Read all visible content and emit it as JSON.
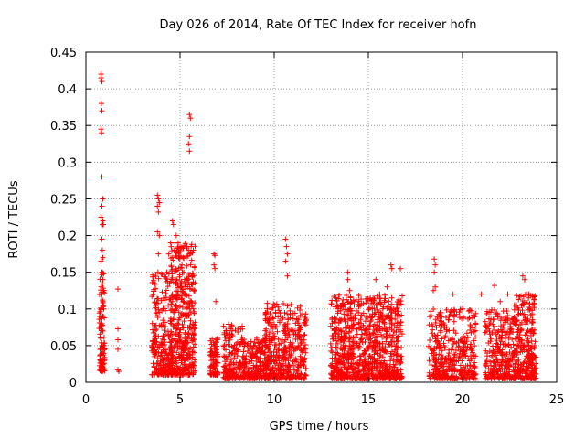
{
  "chart_data": {
    "type": "scatter",
    "title": "Day 026 of 2014, Rate Of TEC Index for receiver hofn",
    "xlabel": "GPS time / hours",
    "ylabel": "ROTI / TECUs",
    "xlim": [
      0,
      25
    ],
    "ylim": [
      0,
      0.45
    ],
    "xticks": [
      0,
      5,
      10,
      15,
      20,
      25
    ],
    "yticks": [
      0,
      0.05,
      0.1,
      0.15,
      0.2,
      0.25,
      0.3,
      0.35,
      0.4,
      0.45
    ],
    "xtick_labels": [
      "0",
      "5",
      "10",
      "15",
      "20",
      "25"
    ],
    "ytick_labels": [
      "0",
      "0.05",
      "0.1",
      "0.15",
      "0.2",
      "0.25",
      "0.3",
      "0.35",
      "0.4",
      "0.45"
    ],
    "grid": true,
    "marker": "+",
    "series_color": "#ff0000",
    "series": [
      {
        "name": "ROTI",
        "points": [
          [
            0.8,
            0.42
          ],
          [
            0.8,
            0.415
          ],
          [
            0.85,
            0.41
          ],
          [
            0.82,
            0.38
          ],
          [
            0.85,
            0.37
          ],
          [
            0.8,
            0.345
          ],
          [
            0.83,
            0.34
          ],
          [
            0.85,
            0.28
          ],
          [
            0.9,
            0.25
          ],
          [
            0.85,
            0.24
          ],
          [
            0.8,
            0.225
          ],
          [
            0.9,
            0.22
          ],
          [
            0.88,
            0.215
          ],
          [
            0.92,
            0.215
          ],
          [
            0.85,
            0.195
          ],
          [
            0.87,
            0.18
          ],
          [
            0.9,
            0.17
          ],
          [
            0.8,
            0.165
          ],
          [
            0.85,
            0.15
          ],
          [
            0.9,
            0.14
          ],
          [
            0.8,
            0.13
          ],
          [
            0.85,
            0.12
          ],
          [
            0.9,
            0.11
          ],
          [
            0.82,
            0.1
          ],
          [
            0.88,
            0.09
          ],
          [
            0.85,
            0.08
          ],
          [
            0.9,
            0.07
          ],
          [
            0.8,
            0.06
          ],
          [
            0.85,
            0.05
          ],
          [
            0.88,
            0.04
          ],
          [
            0.82,
            0.03
          ],
          [
            0.9,
            0.025
          ],
          [
            0.85,
            0.02
          ],
          [
            0.95,
            0.05
          ],
          [
            0.95,
            0.1
          ],
          [
            1.7,
            0.127
          ],
          [
            1.7,
            0.073
          ],
          [
            1.7,
            0.058
          ],
          [
            1.7,
            0.045
          ],
          [
            1.7,
            0.017
          ],
          [
            1.75,
            0.015
          ],
          [
            3.8,
            0.255
          ],
          [
            3.85,
            0.25
          ],
          [
            3.9,
            0.245
          ],
          [
            3.8,
            0.24
          ],
          [
            3.85,
            0.232
          ],
          [
            3.8,
            0.205
          ],
          [
            3.9,
            0.2
          ],
          [
            3.85,
            0.175
          ],
          [
            4.6,
            0.22
          ],
          [
            4.65,
            0.215
          ],
          [
            4.8,
            0.2
          ],
          [
            4.9,
            0.19
          ],
          [
            5.0,
            0.185
          ],
          [
            4.5,
            0.19
          ],
          [
            4.7,
            0.18
          ],
          [
            4.4,
            0.175
          ],
          [
            4.6,
            0.17
          ],
          [
            5.1,
            0.16
          ],
          [
            5.2,
            0.15
          ],
          [
            4.3,
            0.15
          ],
          [
            4.8,
            0.14
          ],
          [
            5.5,
            0.365
          ],
          [
            5.55,
            0.36
          ],
          [
            5.5,
            0.335
          ],
          [
            5.45,
            0.325
          ],
          [
            5.5,
            0.315
          ],
          [
            5.4,
            0.13
          ],
          [
            5.3,
            0.12
          ],
          [
            5.6,
            0.11
          ],
          [
            5.5,
            0.1
          ],
          [
            6.8,
            0.175
          ],
          [
            6.85,
            0.173
          ],
          [
            6.8,
            0.16
          ],
          [
            6.85,
            0.155
          ],
          [
            6.9,
            0.11
          ],
          [
            6.8,
            0.05
          ],
          [
            6.85,
            0.04
          ],
          [
            6.9,
            0.03
          ],
          [
            6.75,
            0.025
          ],
          [
            6.8,
            0.02
          ],
          [
            7.0,
            0.035
          ],
          [
            10.6,
            0.195
          ],
          [
            10.65,
            0.185
          ],
          [
            10.7,
            0.175
          ],
          [
            10.6,
            0.165
          ],
          [
            10.7,
            0.145
          ],
          [
            14.0,
            0.125
          ],
          [
            13.9,
            0.14
          ],
          [
            13.9,
            0.15
          ],
          [
            15.4,
            0.14
          ],
          [
            16.2,
            0.16
          ],
          [
            16.25,
            0.155
          ],
          [
            16.7,
            0.155
          ],
          [
            16.0,
            0.13
          ],
          [
            15.6,
            0.12
          ],
          [
            16.5,
            0.1
          ],
          [
            14.5,
            0.11
          ],
          [
            18.5,
            0.168
          ],
          [
            18.55,
            0.16
          ],
          [
            18.5,
            0.15
          ],
          [
            18.55,
            0.13
          ],
          [
            18.45,
            0.125
          ],
          [
            19.5,
            0.12
          ],
          [
            20.0,
            0.1
          ],
          [
            21.0,
            0.12
          ],
          [
            21.7,
            0.132
          ],
          [
            22.0,
            0.11
          ],
          [
            22.4,
            0.12
          ],
          [
            23.2,
            0.145
          ],
          [
            23.3,
            0.14
          ],
          [
            23.4,
            0.12
          ],
          [
            23.5,
            0.115
          ],
          [
            23.6,
            0.1
          ]
        ],
        "clusters": [
          {
            "x": [
              0.7,
              1.0
            ],
            "y": [
              0.015,
              0.16
            ],
            "n": 90
          },
          {
            "x": [
              3.5,
              4.6
            ],
            "y": [
              0.01,
              0.15
            ],
            "n": 260
          },
          {
            "x": [
              4.5,
              5.8
            ],
            "y": [
              0.01,
              0.19
            ],
            "n": 420
          },
          {
            "x": [
              6.6,
              7.0
            ],
            "y": [
              0.01,
              0.06
            ],
            "n": 80
          },
          {
            "x": [
              7.3,
              8.4
            ],
            "y": [
              0.005,
              0.08
            ],
            "n": 180
          },
          {
            "x": [
              8.4,
              9.8
            ],
            "y": [
              0.005,
              0.06
            ],
            "n": 200
          },
          {
            "x": [
              9.5,
              11.7
            ],
            "y": [
              0.005,
              0.11
            ],
            "n": 400
          },
          {
            "x": [
              13.0,
              14.8
            ],
            "y": [
              0.005,
              0.12
            ],
            "n": 420
          },
          {
            "x": [
              14.8,
              16.8
            ],
            "y": [
              0.005,
              0.12
            ],
            "n": 460
          },
          {
            "x": [
              18.2,
              19.4
            ],
            "y": [
              0.005,
              0.1
            ],
            "n": 200
          },
          {
            "x": [
              19.4,
              20.7
            ],
            "y": [
              0.005,
              0.1
            ],
            "n": 200
          },
          {
            "x": [
              21.2,
              22.7
            ],
            "y": [
              0.005,
              0.1
            ],
            "n": 260
          },
          {
            "x": [
              22.7,
              23.9
            ],
            "y": [
              0.005,
              0.12
            ],
            "n": 300
          }
        ]
      }
    ]
  }
}
